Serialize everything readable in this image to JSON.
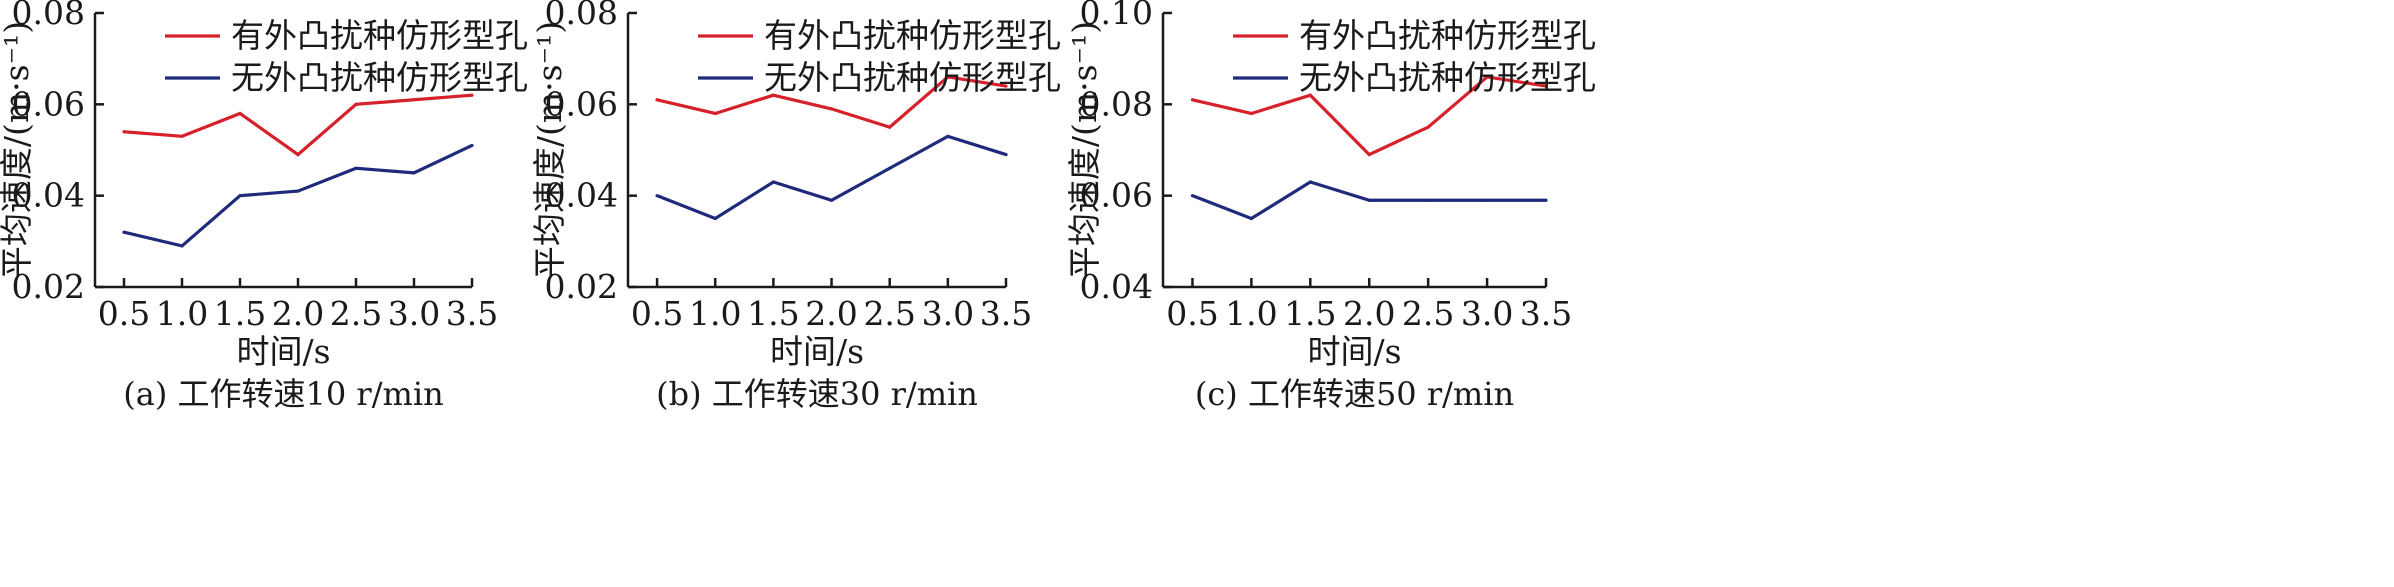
{
  "chart_data": [
    {
      "type": "line",
      "caption": "(a) 工作转速10 r/min",
      "xlabel": "时间/s",
      "ylabel": "平均速度/(m·s⁻¹)",
      "x": [
        0.5,
        1.0,
        1.5,
        2.0,
        2.5,
        3.0,
        3.5
      ],
      "xticks": [
        "0.5",
        "1.0",
        "1.5",
        "2.0",
        "2.5",
        "3.0",
        "3.5"
      ],
      "ylim": [
        0.02,
        0.08
      ],
      "yticks": [
        "0.02",
        "0.04",
        "0.06",
        "0.08"
      ],
      "legend_position": "top-left",
      "series": [
        {
          "name": "有外凸扰种仿形型孔",
          "color": "#d6202a",
          "values": [
            0.054,
            0.053,
            0.058,
            0.049,
            0.06,
            0.061,
            0.062
          ]
        },
        {
          "name": "无外凸扰种仿形型孔",
          "color": "#1f2a7a",
          "values": [
            0.032,
            0.029,
            0.04,
            0.041,
            0.046,
            0.045,
            0.051
          ]
        }
      ]
    },
    {
      "type": "line",
      "caption": "(b) 工作转速30 r/min",
      "xlabel": "时间/s",
      "ylabel": "平均速度/(m·s⁻¹)",
      "x": [
        0.5,
        1.0,
        1.5,
        2.0,
        2.5,
        3.0,
        3.5
      ],
      "xticks": [
        "0.5",
        "1.0",
        "1.5",
        "2.0",
        "2.5",
        "3.0",
        "3.5"
      ],
      "ylim": [
        0.02,
        0.08
      ],
      "yticks": [
        "0.02",
        "0.04",
        "0.06",
        "0.08"
      ],
      "legend_position": "top-left",
      "series": [
        {
          "name": "有外凸扰种仿形型孔",
          "color": "#d6202a",
          "values": [
            0.061,
            0.058,
            0.062,
            0.059,
            0.055,
            0.066,
            0.064
          ]
        },
        {
          "name": "无外凸扰种仿形型孔",
          "color": "#1f2a7a",
          "values": [
            0.04,
            0.035,
            0.043,
            0.039,
            0.046,
            0.053,
            0.049
          ]
        }
      ]
    },
    {
      "type": "line",
      "caption": "(c) 工作转速50 r/min",
      "xlabel": "时间/s",
      "ylabel": "平均速度/(m·s⁻¹)",
      "x": [
        0.5,
        1.0,
        1.5,
        2.0,
        2.5,
        3.0,
        3.5
      ],
      "xticks": [
        "0.5",
        "1.0",
        "1.5",
        "2.0",
        "2.5",
        "3.0",
        "3.5"
      ],
      "ylim": [
        0.04,
        0.1
      ],
      "yticks": [
        "0.04",
        "0.06",
        "0.08",
        "0.10"
      ],
      "legend_position": "top-left",
      "series": [
        {
          "name": "有外凸扰种仿形型孔",
          "color": "#d6202a",
          "values": [
            0.081,
            0.078,
            0.082,
            0.069,
            0.075,
            0.086,
            0.084
          ]
        },
        {
          "name": "无外凸扰种仿形型孔",
          "color": "#1f2a7a",
          "values": [
            0.06,
            0.055,
            0.063,
            0.059,
            0.059,
            0.059,
            0.059
          ]
        }
      ]
    }
  ]
}
